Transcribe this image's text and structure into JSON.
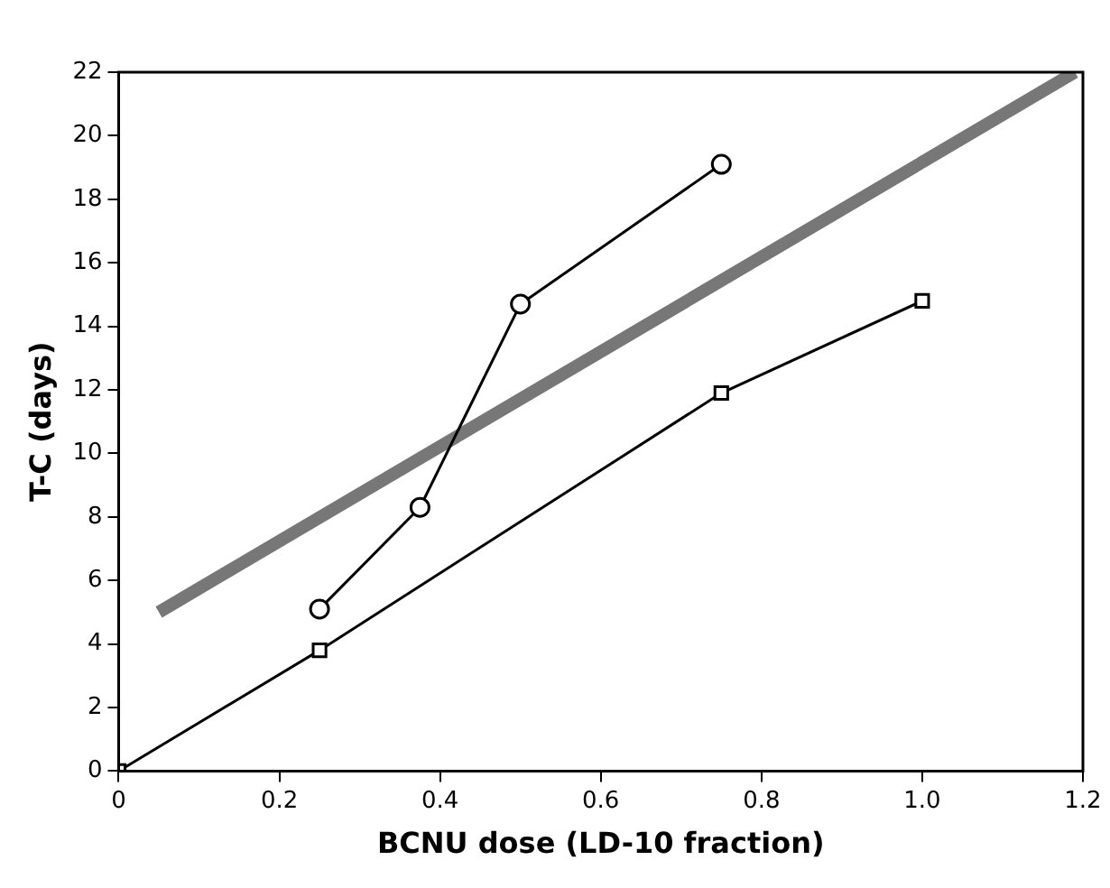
{
  "chart_data": {
    "type": "line",
    "xlabel": "BCNU dose (LD-10 fraction)",
    "ylabel": "T-C (days)",
    "series": [
      {
        "x": [
          0.25,
          0.375,
          0.5,
          0.75
        ],
        "values": [
          5.1,
          8.3,
          14.7,
          19.1
        ],
        "color": "#000000",
        "marker": "circle"
      },
      {
        "x": [
          0,
          0.25,
          0.75,
          1.0
        ],
        "values": [
          0,
          3.8,
          11.9,
          14.8
        ],
        "color": "#000000",
        "marker": "square"
      },
      {
        "x": [
          0.05,
          1.19
        ],
        "values": [
          5,
          22
        ],
        "color": "#777777",
        "marker": "none"
      }
    ],
    "xlim": [
      0,
      1.2
    ],
    "xticks": [
      0,
      0.2,
      0.4,
      0.6,
      0.8,
      {
        "value": 1,
        "label": "1.0"
      },
      1.2
    ],
    "ylim": [
      0,
      22
    ],
    "yticks": [
      0,
      2,
      4,
      6,
      8,
      10,
      12,
      14,
      16,
      18,
      20,
      22
    ],
    "grid": false,
    "legend": false
  }
}
